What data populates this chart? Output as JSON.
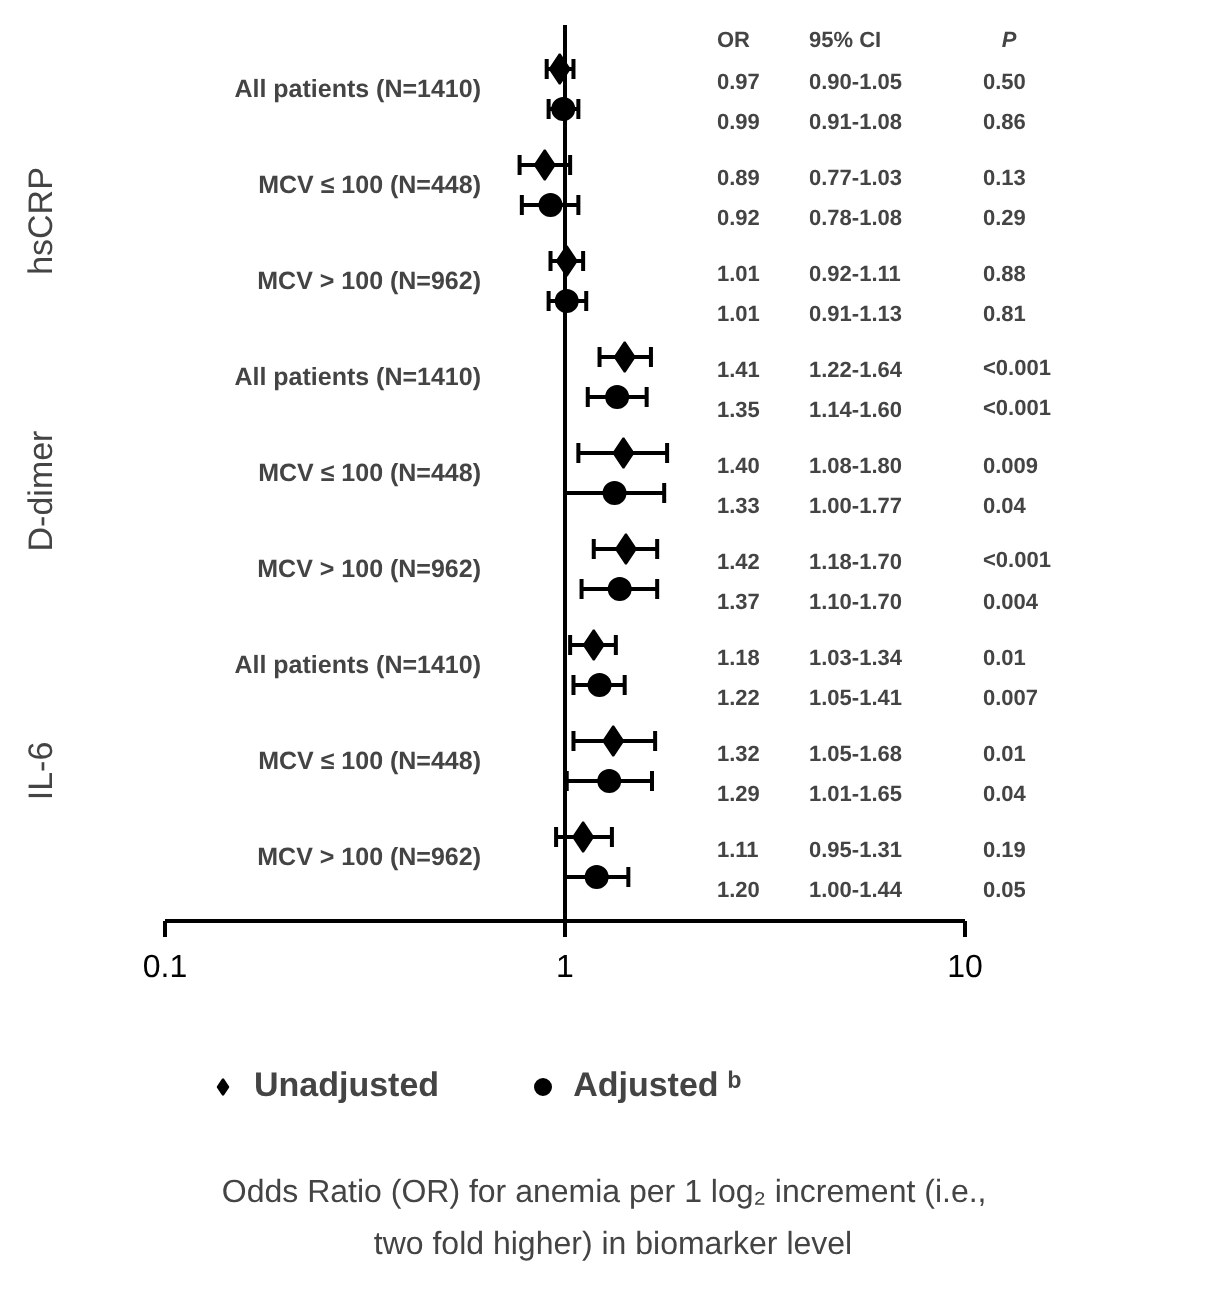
{
  "chart_data": {
    "type": "scatter",
    "orientation": "horizontal",
    "log": "x",
    "categories": [
      "All patients (N=1410)",
      "MCV ≤ 100 (N=448)",
      "MCV > 100 (N=962)",
      "All patients (N=1410)",
      "MCV ≤ 100 (N=448)",
      "MCV > 100 (N=962)",
      "All patients (N=1410)",
      "MCV ≤ 100 (N=448)",
      "MCV > 100 (N=962)"
    ],
    "series": [
      {
        "name": "Unadjusted",
        "color": "#000000",
        "marker": "diamond",
        "values": [
          0.97,
          0.89,
          1.01,
          1.41,
          1.4,
          1.42,
          1.18,
          1.32,
          1.11
        ],
        "errors": [
          [
            0.9,
            1.05
          ],
          [
            0.77,
            1.03
          ],
          [
            0.92,
            1.11
          ],
          [
            1.22,
            1.64
          ],
          [
            1.08,
            1.8
          ],
          [
            1.18,
            1.7
          ],
          [
            1.03,
            1.34
          ],
          [
            1.05,
            1.68
          ],
          [
            0.95,
            1.31
          ]
        ],
        "value_labels": [
          "0.97  0.90-1.05  0.50",
          "0.89  0.77-1.03  0.13",
          "1.01  0.92-1.11  0.88",
          "1.41  1.22-1.64  <0.001",
          "1.40  1.08-1.80  0.009",
          "1.42  1.18-1.70  <0.001",
          "1.18  1.03-1.34  0.01",
          "1.32  1.05-1.68  0.01",
          "1.11  0.95-1.31  0.19"
        ]
      },
      {
        "name": "Adjusted ᵇ",
        "color": "#000000",
        "marker": "circle",
        "values": [
          0.99,
          0.92,
          1.01,
          1.35,
          1.33,
          1.37,
          1.22,
          1.29,
          1.2
        ],
        "errors": [
          [
            0.91,
            1.08
          ],
          [
            0.78,
            1.08
          ],
          [
            0.91,
            1.13
          ],
          [
            1.14,
            1.6
          ],
          [
            1.0,
            1.77
          ],
          [
            1.1,
            1.7
          ],
          [
            1.05,
            1.41
          ],
          [
            1.01,
            1.65
          ],
          [
            1.0,
            1.44
          ]
        ],
        "value_labels": [
          "0.99  0.91-1.08  0.86",
          "0.92  0.78-1.08  0.29",
          "1.01  0.91-1.13  0.81",
          "1.35  1.14-1.60  <0.001",
          "1.33  1.00-1.77  0.04",
          "1.37  1.10-1.70  0.004",
          "1.22  1.05-1.41  0.007",
          "1.29  1.01-1.65  0.04",
          "1.20  1.00-1.44  0.05"
        ]
      }
    ],
    "xlim": [
      0.1,
      10
    ],
    "xticks": [
      0.1,
      1,
      10
    ],
    "ref_lines": [
      {
        "axis": "x",
        "value": 1,
        "color": "#000000"
      }
    ],
    "legend": "bottom",
    "annotations": [
      "OR",
      "95% CI",
      "P",
      "hsCRP",
      "D-dimer",
      "IL-6",
      "Odds Ratio  (OR) for anemia per 1 log₂  increment (i.e., two fold higher) in biomarker level"
    ]
  }
}
